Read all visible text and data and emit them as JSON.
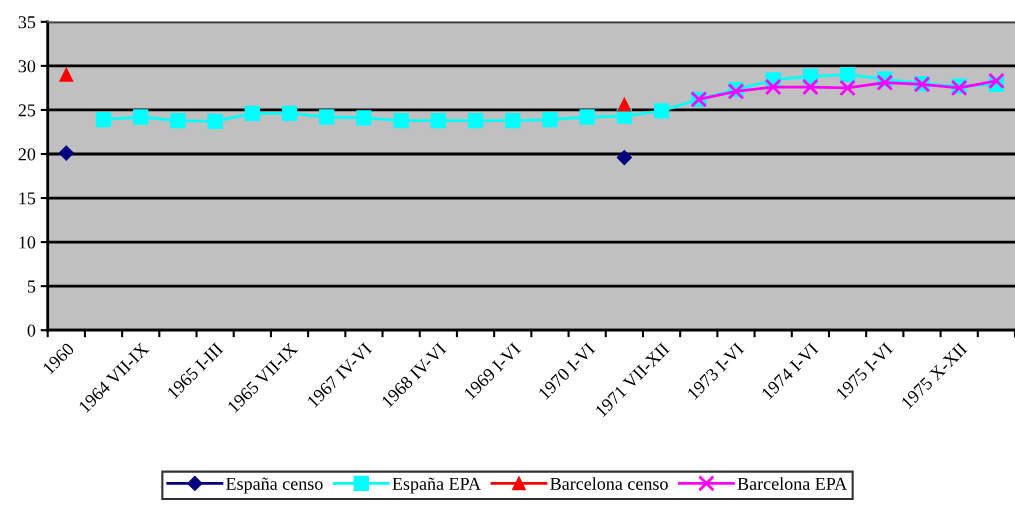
{
  "chart_data": {
    "type": "line",
    "categories": [
      "1960",
      null,
      "1964 VII-IX",
      null,
      "1965 I-III",
      null,
      "1965 VII-IX",
      null,
      "1967 IV-VI",
      null,
      "1968 IV-VI",
      null,
      "1969 I-VI",
      null,
      "1970 I-VI",
      null,
      "1971 VII-XII",
      null,
      "1973 I-VI",
      null,
      "1974 I-VI",
      null,
      "1975 I-VI",
      null,
      "1975 X-XII",
      null
    ],
    "series": [
      {
        "name": "España censo",
        "type": "scatter",
        "color": "#000080",
        "marker": "diamond",
        "values": [
          20.1,
          null,
          null,
          null,
          null,
          null,
          null,
          null,
          null,
          null,
          null,
          null,
          null,
          null,
          null,
          19.6,
          null,
          null,
          null,
          null,
          null,
          null,
          null,
          null,
          null,
          null
        ]
      },
      {
        "name": "España EPA",
        "color": "#00ffff",
        "marker": "square",
        "values": [
          null,
          23.9,
          24.2,
          23.8,
          23.7,
          24.6,
          24.6,
          24.2,
          24.1,
          23.8,
          23.8,
          23.8,
          23.8,
          23.9,
          24.2,
          24.3,
          24.9,
          26.2,
          27.3,
          28.4,
          28.8,
          29.0,
          28.5,
          28.0,
          27.7,
          27.9
        ]
      },
      {
        "name": "Barcelona censo",
        "type": "scatter",
        "color": "#ff0000",
        "marker": "triangle",
        "values": [
          29.0,
          null,
          null,
          null,
          null,
          null,
          null,
          null,
          null,
          null,
          null,
          null,
          null,
          null,
          null,
          25.6,
          null,
          null,
          null,
          null,
          null,
          null,
          null,
          null,
          null,
          null
        ]
      },
      {
        "name": "Barcelona EPA",
        "color": "#ff00ff",
        "marker": "cross",
        "values": [
          null,
          null,
          null,
          null,
          null,
          null,
          null,
          null,
          null,
          null,
          null,
          null,
          null,
          null,
          null,
          null,
          null,
          26.2,
          27.1,
          27.6,
          27.6,
          27.5,
          28.1,
          27.9,
          27.5,
          28.3
        ]
      }
    ],
    "ylim": [
      0,
      35
    ],
    "yticks": [
      0,
      5,
      10,
      15,
      20,
      25,
      30,
      35
    ],
    "grid": "y",
    "legend": "bottom",
    "line_style": "solid"
  }
}
